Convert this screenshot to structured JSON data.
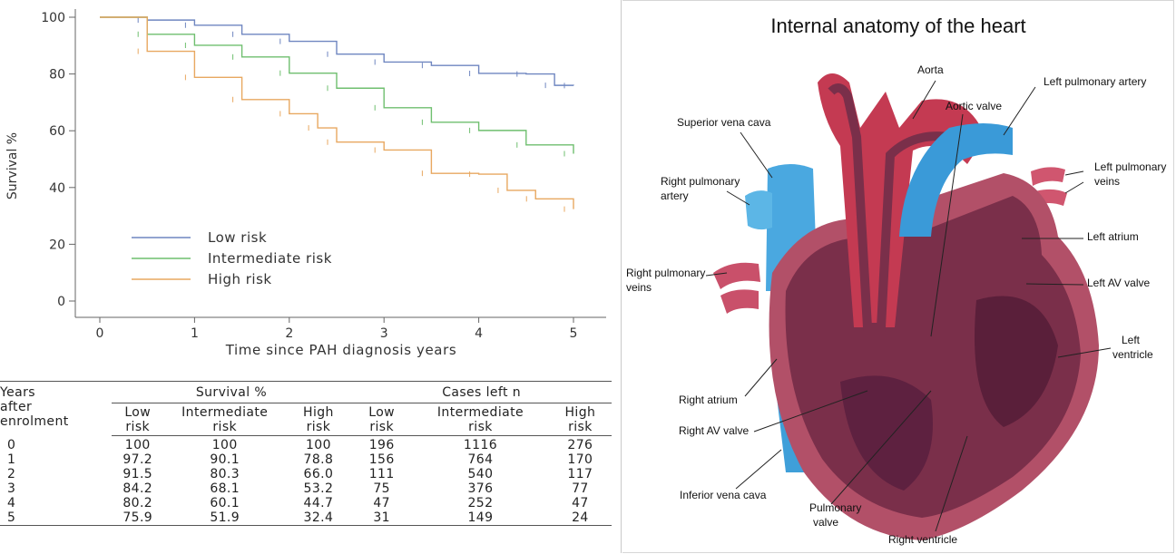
{
  "chart_data": {
    "type": "line",
    "ylabel": "Survival %",
    "xlabel": "Time since PAH diagnosis years",
    "xlim": [
      0,
      5
    ],
    "ylim": [
      0,
      100
    ],
    "x_ticks": [
      "0",
      "1",
      "2",
      "3",
      "4",
      "5"
    ],
    "y_ticks": [
      "0",
      "20",
      "40",
      "60",
      "80",
      "100"
    ],
    "legend_position": "center-left",
    "grid": false,
    "series": [
      {
        "name": "Low risk",
        "color": "#6f86c0",
        "x": [
          0,
          0.5,
          1,
          1.5,
          2,
          2.5,
          3,
          3.5,
          4,
          4.5,
          4.8,
          5
        ],
        "y": [
          100,
          99,
          97.2,
          94,
          91.5,
          87,
          84.2,
          83,
          80.2,
          80,
          76,
          75.9
        ]
      },
      {
        "name": "Intermediate risk",
        "color": "#6fbf6f",
        "x": [
          0,
          0.5,
          1,
          1.5,
          2,
          2.5,
          3,
          3.5,
          4,
          4.5,
          5
        ],
        "y": [
          100,
          94,
          90.1,
          86,
          80.3,
          75,
          68.1,
          63,
          60.1,
          55,
          51.9
        ]
      },
      {
        "name": "High risk",
        "color": "#e8a860",
        "x": [
          0,
          0.5,
          1,
          1.5,
          2,
          2.3,
          2.5,
          3,
          3.5,
          4,
          4.3,
          4.6,
          5
        ],
        "y": [
          100,
          88,
          78.8,
          71,
          66.0,
          61,
          56,
          53.2,
          45,
          44.7,
          39,
          36,
          32.4
        ]
      }
    ]
  },
  "table": {
    "years_label": [
      "Years",
      "after",
      "enrolment"
    ],
    "group_survival": "Survival %",
    "group_cases": "Cases left n",
    "sub_headers": [
      [
        "Low",
        "risk"
      ],
      [
        "Intermediate",
        "risk"
      ],
      [
        "High",
        "risk"
      ],
      [
        "Low",
        "risk"
      ],
      [
        "Intermediate",
        "risk"
      ],
      [
        "High",
        "risk"
      ]
    ],
    "rows": [
      [
        "0",
        "100",
        "100",
        "100",
        "196",
        "1116",
        "276"
      ],
      [
        "1",
        "97.2",
        "90.1",
        "78.8",
        "156",
        "764",
        "170"
      ],
      [
        "2",
        "91.5",
        "80.3",
        "66.0",
        "111",
        "540",
        "117"
      ],
      [
        "3",
        "84.2",
        "68.1",
        "53.2",
        "75",
        "376",
        "77"
      ],
      [
        "4",
        "80.2",
        "60.1",
        "44.7",
        "47",
        "252",
        "47"
      ],
      [
        "5",
        "75.9",
        "51.9",
        "32.4",
        "31",
        "149",
        "24"
      ]
    ]
  },
  "diagram": {
    "title": "Internal anatomy of the heart",
    "labels": {
      "aorta": "Aorta",
      "aortic_valve": "Aortic valve",
      "left_pulmonary_artery": "Left pulmonary artery",
      "superior_vena_cava": "Superior vena cava",
      "right_pulmonary_artery": [
        "Right pulmonary",
        "artery"
      ],
      "left_pulmonary_veins": [
        "Left pulmonary",
        "veins"
      ],
      "left_atrium": "Left atrium",
      "right_pulmonary_veins": [
        "Right pulmonary",
        "veins"
      ],
      "left_av_valve": "Left AV valve",
      "left_ventricle": [
        "Left",
        "ventricle"
      ],
      "right_atrium": "Right atrium",
      "right_av_valve": "Right AV valve",
      "inferior_vena_cava": "Inferior vena cava",
      "pulmonary_valve": [
        "Pulmonary",
        "valve"
      ],
      "right_ventricle": "Right ventricle"
    }
  }
}
